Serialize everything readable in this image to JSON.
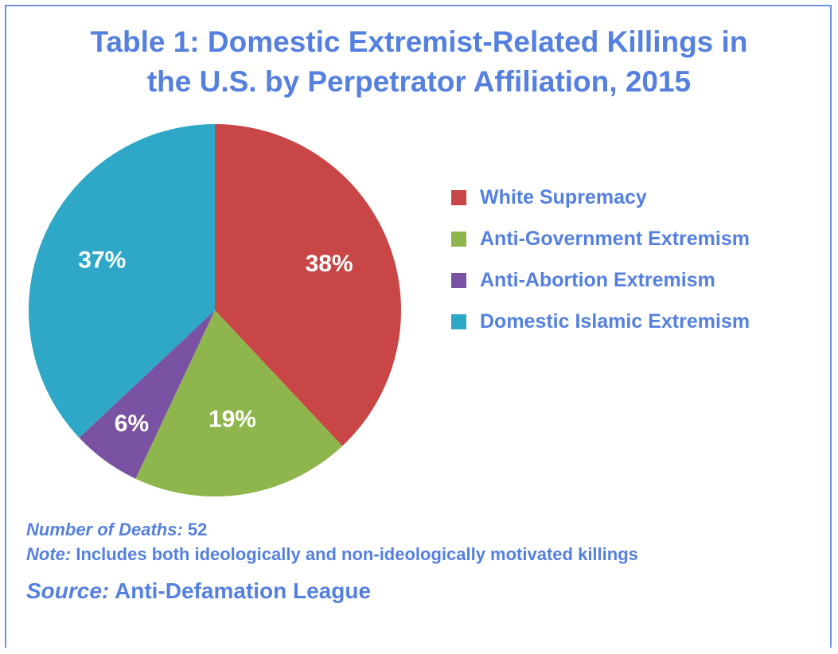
{
  "title_line1": "Table 1: Domestic Extremist-Related Killings in",
  "title_line2": "the U.S. by Perpetrator Affiliation, 2015",
  "chart_data": {
    "type": "pie",
    "title": "Table 1: Domestic Extremist-Related Killings in the U.S. by Perpetrator Affiliation, 2015",
    "slices": [
      {
        "name": "White Supremacy",
        "value": 38,
        "label": "38%",
        "color": "#c94646"
      },
      {
        "name": "Anti-Government Extremism",
        "value": 19,
        "label": "19%",
        "color": "#8fb64c"
      },
      {
        "name": "Anti-Abortion Extremism",
        "value": 6,
        "label": "6%",
        "color": "#7a52a3"
      },
      {
        "name": "Domestic Islamic Extremism",
        "value": 37,
        "label": "37%",
        "color": "#2ea8c6"
      }
    ],
    "legend_position": "right"
  },
  "footer": {
    "deaths_label": "Number of Deaths:",
    "deaths_value": "52",
    "note_label": "Note:",
    "note_text": "Includes both ideologically and non-ideologically motivated killings",
    "source_label": "Source:",
    "source_text": "Anti-Defamation League"
  },
  "colors": {
    "text": "#5580df",
    "border": "#6f8fe3"
  }
}
